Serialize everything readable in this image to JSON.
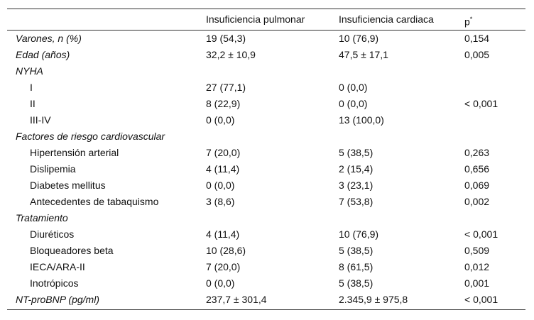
{
  "header": {
    "columns": [
      "Insuficiencia pulmonar",
      "Insuficiencia cardiaca",
      "p"
    ],
    "p_mark": "*"
  },
  "rows": [
    {
      "label": "Varones, n (%)",
      "values": [
        "19 (54,3)",
        "10 (76,9)",
        "0,154"
      ]
    },
    {
      "label": "Edad (años)",
      "values": [
        "32,2 ± 10,9",
        "47,5 ± 17,1",
        "0,005"
      ]
    },
    {
      "label": "NYHA",
      "items": [
        {
          "label": "I",
          "values": [
            "27 (77,1)",
            "0 (0,0)",
            null
          ]
        },
        {
          "label": "II",
          "values": [
            "8 (22,9)",
            "0 (0,0)",
            "< 0,001"
          ]
        },
        {
          "label": "III-IV",
          "values": [
            "0 (0,0)",
            "13 (100,0)",
            null
          ]
        }
      ]
    },
    {
      "label": "Factores de riesgo cardiovascular",
      "items": [
        {
          "label": "Hipertensión arterial",
          "values": [
            "7 (20,0)",
            "5 (38,5)",
            "0,263"
          ]
        },
        {
          "label": "Dislipemia",
          "values": [
            "4 (11,4)",
            "2 (15,4)",
            "0,656"
          ]
        },
        {
          "label": "Diabetes mellitus",
          "values": [
            "0 (0,0)",
            "3 (23,1)",
            "0,069"
          ]
        },
        {
          "label": "Antecedentes de tabaquismo",
          "values": [
            "3 (8,6)",
            "7 (53,8)",
            "0,002"
          ]
        }
      ]
    },
    {
      "label": "Tratamiento",
      "items": [
        {
          "label": "Diuréticos",
          "values": [
            "4 (11,4)",
            "10 (76,9)",
            "< 0,001"
          ]
        },
        {
          "label": "Bloqueadores beta",
          "values": [
            "10 (28,6)",
            "5 (38,5)",
            "0,509"
          ]
        },
        {
          "label": "IECA/ARA-II",
          "values": [
            "7 (20,0)",
            "8 (61,5)",
            "0,012"
          ]
        },
        {
          "label": "Inotrópicos",
          "values": [
            "0 (0,0)",
            "5 (38,5)",
            "0,001"
          ]
        }
      ]
    },
    {
      "label": "NT-proBNP (pg/ml)",
      "values": [
        "237,7 ± 301,4",
        "2.345,9 ± 975,8",
        "< 0,001"
      ]
    }
  ]
}
